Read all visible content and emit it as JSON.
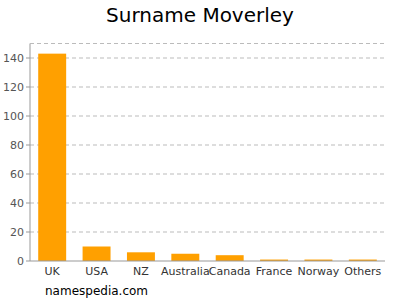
{
  "chart_data": {
    "type": "bar",
    "title": "Surname Moverley",
    "categories": [
      "UK",
      "USA",
      "NZ",
      "Australia",
      "Canada",
      "France",
      "Norway",
      "Others"
    ],
    "values": [
      143,
      10,
      6,
      5,
      4,
      1,
      1,
      1
    ],
    "color": "#ffa000",
    "ylim": [
      0,
      150
    ],
    "yticks": [
      0,
      20,
      40,
      60,
      80,
      100,
      120,
      140
    ],
    "grid": true,
    "source": "namespedia.com"
  }
}
